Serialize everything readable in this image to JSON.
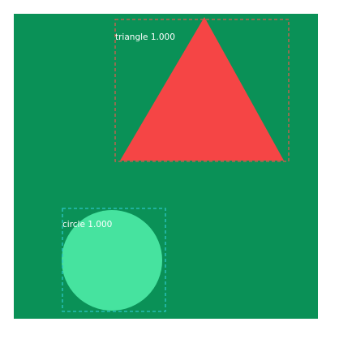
{
  "image": {
    "background_color": "#0A9157"
  },
  "detections": [
    {
      "label": "triangle 1.000",
      "shape_color": "#F54545",
      "box_color": "#D95B4E"
    },
    {
      "label": "circle 1.000",
      "shape_color": "#46E39F",
      "box_color": "#2CC7C7"
    }
  ]
}
